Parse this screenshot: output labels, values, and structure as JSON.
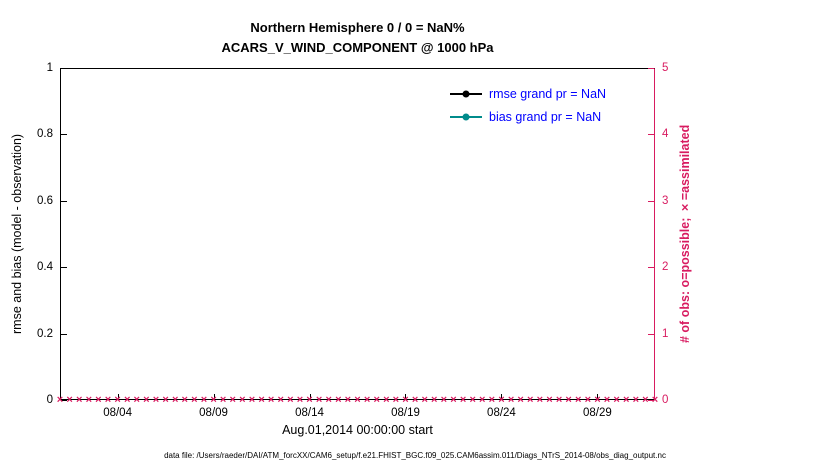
{
  "title": {
    "line1": "Northern Hemisphere 0 / 0 = NaN%",
    "line2": "ACARS_V_WIND_COMPONENT @ 1000 hPa"
  },
  "left_axis": {
    "label": "rmse and bias (model - observation)",
    "ticks": [
      "0",
      "0.2",
      "0.4",
      "0.6",
      "0.8",
      "1"
    ]
  },
  "right_axis": {
    "label": "# of obs: o=possible; ×=assimilated",
    "ticks": [
      "0",
      "1",
      "2",
      "3",
      "4",
      "5"
    ]
  },
  "x_axis": {
    "ticks": [
      "08/04",
      "08/09",
      "08/14",
      "08/19",
      "08/24",
      "08/29"
    ],
    "label": "Aug.01,2014 00:00:00 start"
  },
  "legend": {
    "items": [
      {
        "label": "rmse grand pr = NaN",
        "color": "#000000"
      },
      {
        "label": "bias grand pr = NaN",
        "color": "#008b8b"
      }
    ]
  },
  "footer": "data file: /Users/raeder/DAI/ATM_forcXX/CAM6_setup/f.e21.FHIST_BGC.f09_025.CAM6assim.011/Diags_NTrS_2014-08/obs_diag_output.nc",
  "colors": {
    "magenta": "#d81b60",
    "teal": "#008b8b",
    "legend_text_blue": "#0000ff",
    "axis_black": "#000000"
  },
  "chart_data": {
    "type": "line",
    "title": "Northern Hemisphere 0 / 0 = NaN%",
    "subtitle": "ACARS_V_WIND_COMPONENT @ 1000 hPa",
    "xlabel": "Aug.01,2014 00:00:00 start",
    "x_tick_labels": [
      "08/04",
      "08/09",
      "08/14",
      "08/19",
      "08/24",
      "08/29"
    ],
    "x_range": "Aug 01 2014 00:00 to Sep 01 2014, tick marks every 5 days starting 08/04",
    "ylabel_left": "rmse and bias (model - observation)",
    "ylim_left": [
      0,
      1
    ],
    "left_tick_labels": [
      "0",
      "0.2",
      "0.4",
      "0.6",
      "0.8",
      "1"
    ],
    "ylabel_right": "# of obs: o=possible; ×=assimilated",
    "ylim_right": [
      0,
      5
    ],
    "right_tick_labels": [
      "0",
      "1",
      "2",
      "3",
      "4",
      "5"
    ],
    "grid": false,
    "legend_position": "upper-right-inside",
    "series": [
      {
        "name": "rmse grand pr = NaN",
        "axis": "left",
        "color": "#000000",
        "values": "all NaN - no curve plotted"
      },
      {
        "name": "bias grand pr = NaN",
        "axis": "left",
        "color": "#008b8b",
        "values": "all NaN - no curve plotted"
      },
      {
        "name": "# of obs possible (o markers)",
        "axis": "right",
        "color": "#d81b60",
        "constant_value": 0
      },
      {
        "name": "# of obs assimilated (× markers)",
        "axis": "right",
        "color": "#d81b60",
        "constant_value": 0
      }
    ],
    "n_obs_times": 63,
    "obs_marker_note": "dense magenta × markers at y=0 along the entire x-axis (every ~12 h, all values 0)"
  }
}
